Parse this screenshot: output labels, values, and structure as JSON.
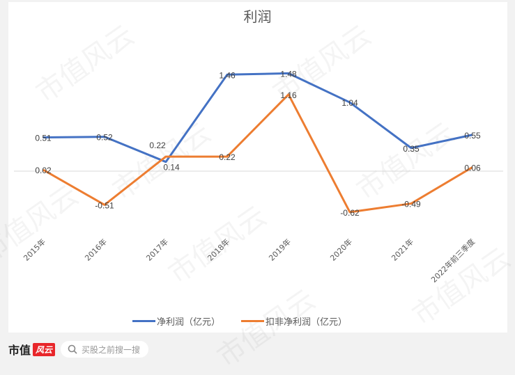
{
  "chart_data": {
    "type": "line",
    "title": "利润",
    "categories": [
      "2015年",
      "2016年",
      "2017年",
      "2018年",
      "2019年",
      "2020年",
      "2021年",
      "2022年前三季度"
    ],
    "series": [
      {
        "name": "净利润（亿元）",
        "color": "#4472c4",
        "values": [
          0.51,
          0.52,
          0.14,
          1.46,
          1.48,
          1.04,
          0.35,
          0.55
        ]
      },
      {
        "name": "扣非净利润（亿元）",
        "color": "#ed7d31",
        "values": [
          0.02,
          -0.51,
          0.22,
          0.22,
          1.16,
          -0.62,
          -0.49,
          0.06
        ]
      }
    ],
    "xlabel": "",
    "ylabel": "",
    "grid": false,
    "legend_position": "bottom",
    "data_labels": true
  },
  "legend": {
    "items": [
      "净利润（亿元）",
      "扣非净利润（亿元）"
    ]
  },
  "footer": {
    "brand_text": "市值",
    "brand_mark": "风云",
    "search_placeholder": "买股之前搜一搜"
  },
  "watermark": "市值风云"
}
